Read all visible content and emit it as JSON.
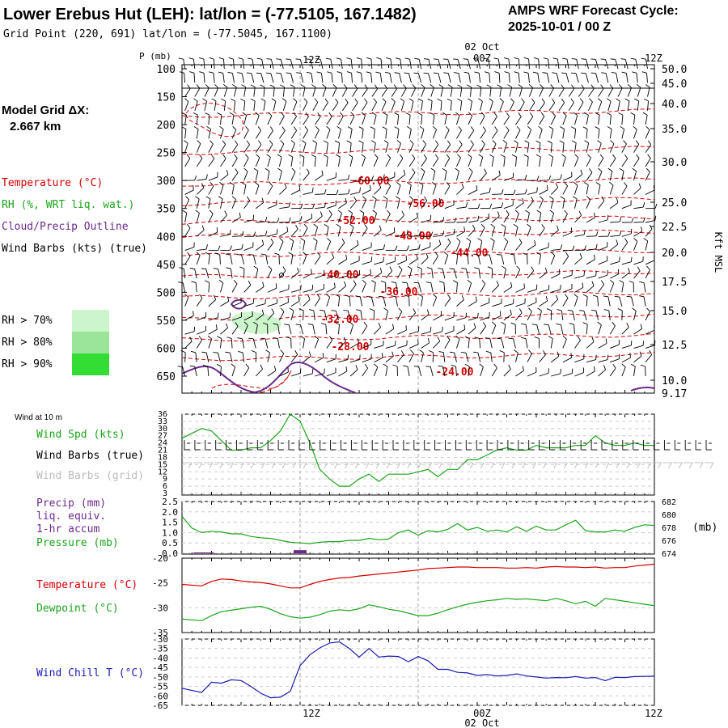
{
  "header": {
    "title": "Lower Erebus Hut (LEH):  lat/lon = (-77.5105, 167.1482)",
    "grid_point": "Grid Point (220, 691) lat/lon = (-77.5045, 167.1100)",
    "cycle_title": "AMPS WRF Forecast Cycle:",
    "cycle_value": "2025-10-01 / 00  Z"
  },
  "model_grid": {
    "label": "Model Grid ΔX:",
    "value": "2.667 km"
  },
  "colors": {
    "temperature": "#d40000",
    "rh": "#1aa51a",
    "cloud": "#6a2a8c",
    "wind": "#000000",
    "wind_grid": "#bbbbbb",
    "windchill": "#1a1ab0",
    "rh70": "#ccf5cc",
    "rh80": "#9be59b",
    "rh90": "#33dd33"
  },
  "upper_legend": {
    "temperature": "Temperature (°C)",
    "rh": "RH (%, WRT liq. wat.)",
    "cloud": "Cloud/Precip Outline",
    "wind": "Wind Barbs (kts) (true)",
    "rh70": "RH > 70%",
    "rh80": "RH > 80%",
    "rh90": "RH > 90%"
  },
  "time_axis": {
    "top_labels": [
      "12Z",
      "00Z",
      "12Z"
    ],
    "date_label": "02 Oct",
    "bottom_labels": [
      "12Z",
      "00Z",
      "12Z"
    ]
  },
  "wind10": {
    "title": "Wind at 10 m",
    "speed_label": "Wind Spd (kts)",
    "barbs_true_label": "Wind Barbs (true)",
    "barbs_grid_label": "Wind Barbs (grid)"
  },
  "precip": {
    "label1": "Precip (mm)",
    "label2": "liq. equiv.",
    "label3": "1-hr accum",
    "pressure_label": "Pressure (mb)",
    "right_unit": "(mb)"
  },
  "temp_panel": {
    "temp_label": "Temperature (°C)",
    "dew_label": "Dewpoint (°C)"
  },
  "windchill_panel": {
    "label": "Wind Chill T (°C)"
  },
  "chart_data": [
    {
      "type": "line",
      "name": "upper-air cross-section",
      "ylabel": "P (mb)",
      "y_ticks": [
        100,
        150,
        200,
        250,
        300,
        350,
        400,
        450,
        500,
        550,
        600,
        650
      ],
      "y_right_label": "Kft MSL",
      "y_right_ticks": [
        "50.0",
        "45.0",
        "40.0",
        "35.0",
        "30.0",
        "25.0",
        "22.5",
        "20.0",
        "17.5",
        "15.0",
        "12.5",
        "10.0",
        "9.17"
      ],
      "x_hours": [
        0,
        48
      ],
      "temperature_contour_labels": [
        "-60.00",
        "-56.00",
        "-52.00",
        "-48.00",
        "-44.00",
        "-40.00",
        "-36.00",
        "-32.00",
        "-28.00",
        "-24.00"
      ]
    },
    {
      "type": "line",
      "name": "wind speed 10m",
      "ylabel": "Wind Spd (kts)",
      "y_ticks": [
        3,
        6,
        9,
        12,
        15,
        18,
        21,
        24,
        27,
        30,
        33,
        36
      ],
      "x": [
        0,
        2,
        3,
        4,
        5,
        6,
        7,
        8,
        9,
        10,
        11,
        12,
        13,
        14,
        15,
        16,
        17,
        18,
        19,
        20,
        21,
        22,
        23,
        24,
        25,
        26,
        27,
        28,
        29,
        30,
        31,
        32,
        33,
        34,
        35,
        36,
        37,
        38,
        39,
        40,
        41,
        42,
        43,
        44,
        45,
        46,
        47,
        48
      ],
      "values": [
        26,
        30,
        29,
        25,
        21,
        21,
        22,
        22,
        25,
        29,
        36,
        33,
        24,
        13,
        9,
        6,
        6,
        9,
        11,
        8,
        11,
        11,
        11,
        12,
        13,
        10,
        13,
        13,
        17,
        17,
        19,
        21,
        22,
        21,
        21,
        23,
        22,
        22,
        22,
        23,
        23,
        27,
        24,
        23,
        23,
        24,
        23,
        23
      ]
    },
    {
      "type": "line",
      "name": "precip and pressure",
      "y_left_ticks": [
        "2.5",
        "2.0",
        "1.5",
        "1.0",
        "0.5",
        "0.0"
      ],
      "y_right_ticks": [
        "682",
        "680",
        "678",
        "676",
        "674"
      ],
      "precip_bars": [
        {
          "x": 1.8,
          "v": 0.04
        },
        {
          "x": 2.6,
          "v": 0.04
        },
        {
          "x": 12.0,
          "v": 0.15
        }
      ],
      "pressure_x": [
        0,
        1,
        2,
        3,
        4,
        5,
        6,
        7,
        8,
        9,
        10,
        11,
        12,
        13,
        14,
        15,
        16,
        17,
        18,
        19,
        20,
        21,
        22,
        23,
        24,
        25,
        26,
        27,
        28,
        29,
        30,
        31,
        32,
        33,
        34,
        35,
        36,
        37,
        38,
        39,
        40,
        41,
        42,
        43,
        44,
        45,
        46,
        47,
        48
      ],
      "pressure": [
        679.7,
        677.9,
        677.2,
        677.4,
        677.3,
        677.0,
        677.0,
        676.6,
        676.4,
        676.3,
        676.0,
        675.7,
        675.6,
        675.5,
        675.7,
        675.8,
        675.8,
        676.0,
        676.0,
        676.3,
        676.1,
        676.2,
        677.2,
        677.6,
        676.8,
        677.5,
        677.3,
        677.7,
        678.6,
        677.6,
        678.0,
        677.4,
        677.6,
        677.3,
        678.1,
        677.4,
        678.2,
        677.6,
        677.6,
        678.4,
        679.1,
        677.5,
        677.3,
        677.3,
        677.6,
        677.4,
        678.0,
        678.4,
        678.3
      ]
    },
    {
      "type": "line",
      "name": "temperature and dewpoint",
      "y_ticks": [
        "-20",
        "-25",
        "-30",
        "-35"
      ],
      "ylim": [
        -35,
        -20
      ],
      "x": [
        0,
        2,
        3,
        4,
        5,
        6,
        7,
        8,
        9,
        10,
        11,
        12,
        13,
        14,
        15,
        16,
        17,
        18,
        19,
        20,
        21,
        22,
        23,
        24,
        25,
        26,
        27,
        28,
        29,
        30,
        31,
        32,
        33,
        34,
        35,
        36,
        37,
        38,
        39,
        40,
        41,
        42,
        43,
        44,
        45,
        46,
        47,
        48
      ],
      "temperature": [
        -25.3,
        -25.6,
        -24.7,
        -24.2,
        -24.3,
        -24.6,
        -24.8,
        -24.9,
        -25.2,
        -25.6,
        -26.0,
        -26.0,
        -25.3,
        -24.7,
        -24.3,
        -24.0,
        -23.9,
        -23.6,
        -23.4,
        -23.2,
        -23.0,
        -22.8,
        -22.6,
        -22.4,
        -22.1,
        -22.0,
        -21.9,
        -21.8,
        -21.8,
        -21.9,
        -21.9,
        -21.9,
        -22.0,
        -22.0,
        -21.9,
        -22.0,
        -21.8,
        -21.7,
        -21.8,
        -21.8,
        -21.9,
        -21.8,
        -22.0,
        -21.9,
        -21.9,
        -21.6,
        -21.4,
        -21.2
      ],
      "dewpoint": [
        -32.3,
        -32.6,
        -31.6,
        -30.8,
        -30.5,
        -30.2,
        -29.9,
        -29.7,
        -30.3,
        -31.2,
        -31.8,
        -32.1,
        -31.9,
        -31.4,
        -30.7,
        -30.4,
        -30.6,
        -30.2,
        -29.4,
        -29.8,
        -30.3,
        -30.6,
        -31.1,
        -31.6,
        -31.6,
        -31.1,
        -30.4,
        -29.8,
        -29.3,
        -28.9,
        -28.6,
        -28.4,
        -28.1,
        -28.3,
        -28.2,
        -28.4,
        -28.6,
        -28.1,
        -28.6,
        -29.2,
        -28.7,
        -29.7,
        -28.1,
        -28.4,
        -28.7,
        -29.0,
        -29.3,
        -29.6
      ]
    },
    {
      "type": "line",
      "name": "wind chill",
      "y_ticks": [
        "-30",
        "-35",
        "-40",
        "-45",
        "-50",
        "-55",
        "-60",
        "-65"
      ],
      "ylim": [
        -65,
        -30
      ],
      "x": [
        0,
        2,
        3,
        4,
        5,
        6,
        7,
        8,
        9,
        10,
        11,
        12,
        13,
        14,
        15,
        16,
        17,
        18,
        19,
        20,
        21,
        22,
        23,
        24,
        25,
        26,
        27,
        28,
        29,
        30,
        31,
        32,
        33,
        34,
        35,
        36,
        37,
        38,
        39,
        40,
        41,
        42,
        43,
        44,
        45,
        46,
        47,
        48
      ],
      "values": [
        -56.0,
        -58.2,
        -52.8,
        -53.3,
        -51.5,
        -51.9,
        -55.0,
        -58.6,
        -61.0,
        -60.7,
        -57.6,
        -44.0,
        -38.3,
        -34.7,
        -32.1,
        -31.5,
        -35.0,
        -39.5,
        -35.0,
        -39.5,
        -39.0,
        -39.2,
        -42.0,
        -39.2,
        -41.5,
        -46.0,
        -46.0,
        -47.6,
        -47.9,
        -49.2,
        -48.8,
        -49.5,
        -49.2,
        -48.4,
        -49.5,
        -50.0,
        -50.6,
        -50.3,
        -50.4,
        -49.8,
        -50.6,
        -50.3,
        -52.0,
        -50.2,
        -50.3,
        -49.8,
        -49.7,
        -49.6
      ]
    }
  ]
}
